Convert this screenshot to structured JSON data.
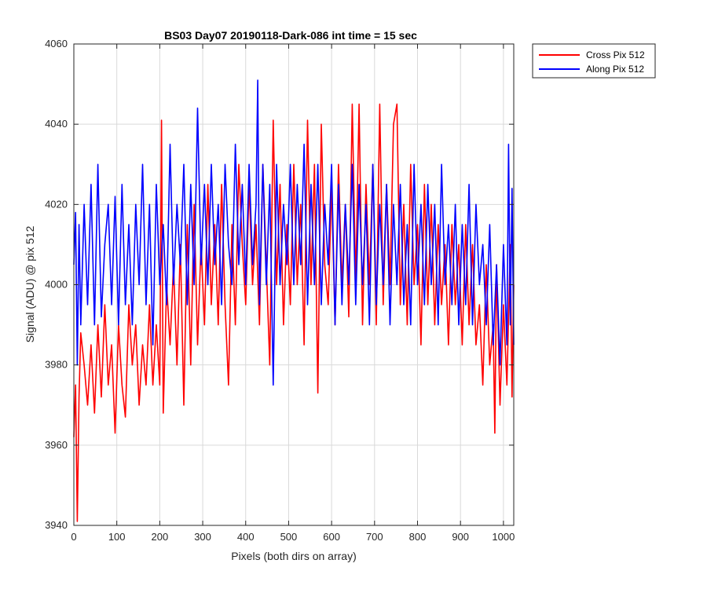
{
  "chart_data": {
    "type": "line",
    "title": "BS03 Day07 20190118-Dark-086 int time = 15 sec",
    "xlabel": "Pixels (both dirs on array)",
    "ylabel": "Signal (ADU) @ pix 512",
    "xlim": [
      0,
      1024
    ],
    "ylim": [
      3940,
      4060
    ],
    "xticks": [
      0,
      100,
      200,
      300,
      400,
      500,
      600,
      700,
      800,
      900,
      1000
    ],
    "yticks": [
      3940,
      3960,
      3980,
      4000,
      4020,
      4040,
      4060
    ],
    "grid": true,
    "legend_position": "outside-top-right",
    "series": [
      {
        "name": "Cross Pix 512",
        "color": "#ff0000",
        "points": [
          [
            0,
            3962
          ],
          [
            4,
            3975
          ],
          [
            8,
            3941
          ],
          [
            12,
            3972
          ],
          [
            16,
            3988
          ],
          [
            24,
            3980
          ],
          [
            32,
            3970
          ],
          [
            40,
            3985
          ],
          [
            48,
            3968
          ],
          [
            56,
            3990
          ],
          [
            64,
            3972
          ],
          [
            72,
            3995
          ],
          [
            80,
            3975
          ],
          [
            88,
            3985
          ],
          [
            96,
            3963
          ],
          [
            104,
            3990
          ],
          [
            112,
            3975
          ],
          [
            120,
            3967
          ],
          [
            128,
            3995
          ],
          [
            136,
            3980
          ],
          [
            144,
            3990
          ],
          [
            152,
            3970
          ],
          [
            160,
            3985
          ],
          [
            168,
            3975
          ],
          [
            176,
            3995
          ],
          [
            184,
            3975
          ],
          [
            192,
            3990
          ],
          [
            200,
            3975
          ],
          [
            204,
            4041
          ],
          [
            208,
            3968
          ],
          [
            216,
            4000
          ],
          [
            224,
            3985
          ],
          [
            232,
            4005
          ],
          [
            240,
            3980
          ],
          [
            248,
            4010
          ],
          [
            256,
            3970
          ],
          [
            264,
            4015
          ],
          [
            272,
            3980
          ],
          [
            280,
            4020
          ],
          [
            288,
            3985
          ],
          [
            296,
            4010
          ],
          [
            304,
            3990
          ],
          [
            312,
            4025
          ],
          [
            320,
            3995
          ],
          [
            328,
            4015
          ],
          [
            336,
            3990
          ],
          [
            344,
            4025
          ],
          [
            352,
            3995
          ],
          [
            360,
            3975
          ],
          [
            368,
            4015
          ],
          [
            376,
            3990
          ],
          [
            384,
            4030
          ],
          [
            392,
            4010
          ],
          [
            400,
            3995
          ],
          [
            408,
            4025
          ],
          [
            416,
            4000
          ],
          [
            424,
            4015
          ],
          [
            432,
            3990
          ],
          [
            440,
            4030
          ],
          [
            448,
            4005
          ],
          [
            456,
            3980
          ],
          [
            464,
            4041
          ],
          [
            472,
            4000
          ],
          [
            480,
            4025
          ],
          [
            488,
            3990
          ],
          [
            496,
            4015
          ],
          [
            504,
            3995
          ],
          [
            512,
            4030
          ],
          [
            520,
            4000
          ],
          [
            528,
            4020
          ],
          [
            536,
            3985
          ],
          [
            544,
            4041
          ],
          [
            552,
            4000
          ],
          [
            560,
            4030
          ],
          [
            568,
            3973
          ],
          [
            576,
            4040
          ],
          [
            584,
            4005
          ],
          [
            592,
            3995
          ],
          [
            600,
            4025
          ],
          [
            608,
            3990
          ],
          [
            616,
            4030
          ],
          [
            624,
            4000
          ],
          [
            632,
            4020
          ],
          [
            640,
            3992
          ],
          [
            648,
            4045
          ],
          [
            656,
            4000
          ],
          [
            664,
            4045
          ],
          [
            672,
            3990
          ],
          [
            680,
            4025
          ],
          [
            688,
            4000
          ],
          [
            696,
            4030
          ],
          [
            704,
            3990
          ],
          [
            712,
            4045
          ],
          [
            720,
            3995
          ],
          [
            728,
            4025
          ],
          [
            736,
            4000
          ],
          [
            744,
            4040
          ],
          [
            752,
            4045
          ],
          [
            760,
            3995
          ],
          [
            768,
            4020
          ],
          [
            776,
            3990
          ],
          [
            784,
            4030
          ],
          [
            792,
            4000
          ],
          [
            800,
            4015
          ],
          [
            808,
            3985
          ],
          [
            816,
            4025
          ],
          [
            824,
            3995
          ],
          [
            832,
            4020
          ],
          [
            840,
            3990
          ],
          [
            848,
            4015
          ],
          [
            856,
            3995
          ],
          [
            864,
            4010
          ],
          [
            872,
            3985
          ],
          [
            880,
            4015
          ],
          [
            888,
            3995
          ],
          [
            896,
            4010
          ],
          [
            904,
            3985
          ],
          [
            912,
            4015
          ],
          [
            920,
            3990
          ],
          [
            928,
            4010
          ],
          [
            936,
            3985
          ],
          [
            944,
            3995
          ],
          [
            952,
            3975
          ],
          [
            960,
            4005
          ],
          [
            968,
            3980
          ],
          [
            976,
            3990
          ],
          [
            980,
            3963
          ],
          [
            984,
            4005
          ],
          [
            992,
            3970
          ],
          [
            1000,
            3995
          ],
          [
            1008,
            3975
          ],
          [
            1016,
            4010
          ],
          [
            1020,
            3972
          ],
          [
            1024,
            4000
          ]
        ]
      },
      {
        "name": "Along Pix 512",
        "color": "#0000ff",
        "points": [
          [
            0,
            4005
          ],
          [
            4,
            4018
          ],
          [
            8,
            3980
          ],
          [
            12,
            4015
          ],
          [
            16,
            3990
          ],
          [
            24,
            4020
          ],
          [
            32,
            3995
          ],
          [
            40,
            4025
          ],
          [
            48,
            3990
          ],
          [
            56,
            4030
          ],
          [
            64,
            3992
          ],
          [
            72,
            4010
          ],
          [
            80,
            4020
          ],
          [
            88,
            3995
          ],
          [
            96,
            4022
          ],
          [
            104,
            3990
          ],
          [
            112,
            4025
          ],
          [
            120,
            3995
          ],
          [
            128,
            4015
          ],
          [
            136,
            3990
          ],
          [
            144,
            4020
          ],
          [
            152,
            4000
          ],
          [
            160,
            4030
          ],
          [
            168,
            3995
          ],
          [
            176,
            4020
          ],
          [
            184,
            3985
          ],
          [
            192,
            4025
          ],
          [
            200,
            4000
          ],
          [
            208,
            4015
          ],
          [
            216,
            3995
          ],
          [
            224,
            4035
          ],
          [
            232,
            4000
          ],
          [
            240,
            4020
          ],
          [
            248,
            4005
          ],
          [
            256,
            4030
          ],
          [
            264,
            3995
          ],
          [
            272,
            4025
          ],
          [
            280,
            4000
          ],
          [
            288,
            4044
          ],
          [
            296,
            4005
          ],
          [
            304,
            4025
          ],
          [
            312,
            4000
          ],
          [
            320,
            4030
          ],
          [
            328,
            4005
          ],
          [
            336,
            4020
          ],
          [
            344,
            3995
          ],
          [
            352,
            4030
          ],
          [
            360,
            4010
          ],
          [
            368,
            4000
          ],
          [
            376,
            4035
          ],
          [
            384,
            4005
          ],
          [
            392,
            4025
          ],
          [
            400,
            4000
          ],
          [
            408,
            4030
          ],
          [
            416,
            4005
          ],
          [
            424,
            4020
          ],
          [
            428,
            4051
          ],
          [
            432,
            3995
          ],
          [
            440,
            4030
          ],
          [
            448,
            4000
          ],
          [
            456,
            4025
          ],
          [
            464,
            3975
          ],
          [
            472,
            4030
          ],
          [
            480,
            4000
          ],
          [
            488,
            4020
          ],
          [
            496,
            4005
          ],
          [
            504,
            4030
          ],
          [
            512,
            4000
          ],
          [
            520,
            4025
          ],
          [
            528,
            4005
          ],
          [
            536,
            4035
          ],
          [
            544,
            3995
          ],
          [
            552,
            4025
          ],
          [
            560,
            4000
          ],
          [
            568,
            4030
          ],
          [
            576,
            3995
          ],
          [
            584,
            4020
          ],
          [
            592,
            4005
          ],
          [
            600,
            4030
          ],
          [
            608,
            3990
          ],
          [
            616,
            4025
          ],
          [
            624,
            3995
          ],
          [
            632,
            4020
          ],
          [
            640,
            4000
          ],
          [
            648,
            4030
          ],
          [
            656,
            3995
          ],
          [
            664,
            4025
          ],
          [
            672,
            4000
          ],
          [
            680,
            4020
          ],
          [
            688,
            3990
          ],
          [
            696,
            4030
          ],
          [
            704,
            3995
          ],
          [
            712,
            4020
          ],
          [
            720,
            4000
          ],
          [
            728,
            4025
          ],
          [
            736,
            3990
          ],
          [
            744,
            4020
          ],
          [
            752,
            4000
          ],
          [
            760,
            4025
          ],
          [
            768,
            3995
          ],
          [
            776,
            4015
          ],
          [
            784,
            3990
          ],
          [
            792,
            4030
          ],
          [
            800,
            4000
          ],
          [
            808,
            4020
          ],
          [
            816,
            3995
          ],
          [
            824,
            4025
          ],
          [
            832,
            4000
          ],
          [
            840,
            4020
          ],
          [
            848,
            3990
          ],
          [
            856,
            4030
          ],
          [
            864,
            4000
          ],
          [
            872,
            4015
          ],
          [
            880,
            3995
          ],
          [
            888,
            4020
          ],
          [
            896,
            3990
          ],
          [
            904,
            4015
          ],
          [
            912,
            3995
          ],
          [
            920,
            4025
          ],
          [
            928,
            3990
          ],
          [
            936,
            4020
          ],
          [
            944,
            4000
          ],
          [
            952,
            4010
          ],
          [
            960,
            3990
          ],
          [
            968,
            4015
          ],
          [
            976,
            3985
          ],
          [
            984,
            4005
          ],
          [
            992,
            3980
          ],
          [
            1000,
            4010
          ],
          [
            1008,
            3985
          ],
          [
            1012,
            4035
          ],
          [
            1016,
            3990
          ],
          [
            1020,
            4024
          ],
          [
            1024,
            3985
          ]
        ]
      }
    ]
  }
}
